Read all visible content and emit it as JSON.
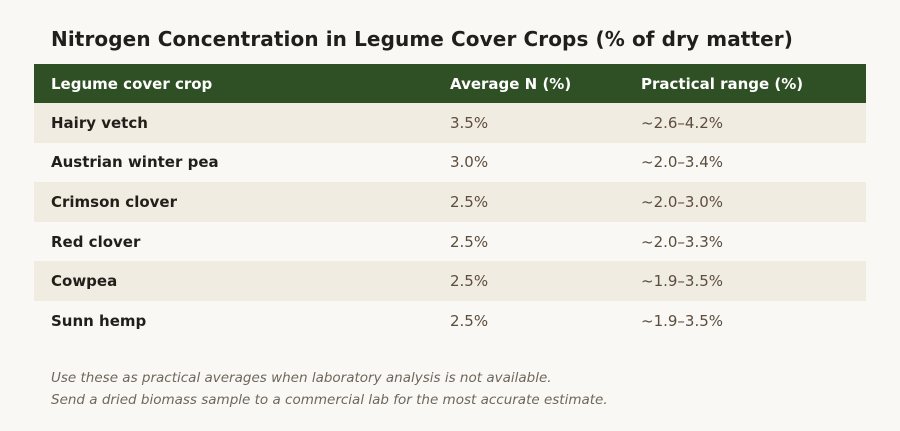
{
  "title": "Nitrogen Concentration in Legume Cover Crops (% of dry matter)",
  "table": {
    "headers": [
      "Legume cover crop",
      "Average N (%)",
      "Practical range (%)"
    ],
    "rows": [
      [
        "Hairy vetch",
        "3.5%",
        "~2.6–4.2%"
      ],
      [
        "Austrian winter pea",
        "3.0%",
        "~2.0–3.4%"
      ],
      [
        "Crimson clover",
        "2.5%",
        "~2.0–3.0%"
      ],
      [
        "Red clover",
        "2.5%",
        "~2.0–3.3%"
      ],
      [
        "Cowpea",
        "2.5%",
        "~1.9–3.5%"
      ],
      [
        "Sunn hemp",
        "2.5%",
        "~1.9–3.5%"
      ]
    ]
  },
  "notes": [
    "Use these as practical averages when laboratory analysis is not available.",
    "Send a dried biomass sample to a commercial lab for the most accurate estimate."
  ],
  "colors": {
    "header_bg": "#2f5024",
    "stripe_bg": "#f1ece1",
    "page_bg": "#faf8f4"
  }
}
